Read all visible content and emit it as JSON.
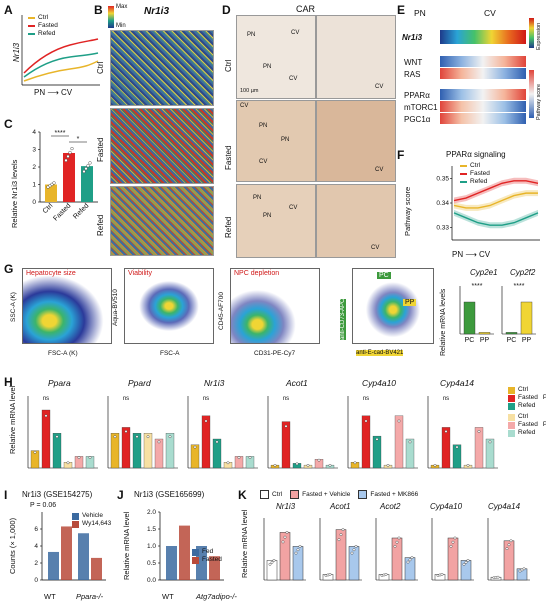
{
  "panels": {
    "A": {
      "letter": "A",
      "ylabel": "Nr1i3",
      "xlabel": "PN ⟶ CV",
      "legend": [
        "Ctrl",
        "Fasted",
        "Refed"
      ]
    },
    "B": {
      "letter": "B",
      "title": "Nr1i3",
      "scale_max": "Max",
      "scale_min": "Min",
      "rows": [
        "Ctrl",
        "Fasted",
        "Refed"
      ]
    },
    "C": {
      "letter": "C",
      "ylabel": "Relative Nr1i3 levels",
      "categories": [
        "Ctrl",
        "Fasted",
        "Refed"
      ],
      "sig": [
        "****",
        "*"
      ],
      "yticks": [
        "0",
        "1",
        "2",
        "3",
        "4"
      ]
    },
    "D": {
      "letter": "D",
      "title": "CAR",
      "rows": [
        "Ctrl",
        "Fasted",
        "Refed"
      ],
      "scalebar": "100 µm",
      "tissue_labels": {
        "pn": "PN",
        "cv": "CV"
      }
    },
    "E": {
      "letter": "E",
      "pn": "PN",
      "cv": "CV",
      "rows": [
        "Nr1i3",
        "WNT",
        "RAS",
        "PPARα",
        "mTORC1",
        "PGC1α"
      ],
      "expr_label": "Expression",
      "path_label": "Pathway score",
      "max": "Max",
      "min": "Min"
    },
    "F": {
      "letter": "F",
      "title": "PPARα signaling",
      "ylabel": "Pathway score",
      "xlabel": "PN ⟶ CV",
      "yticks": [
        "0.33",
        "0.34",
        "0.35"
      ],
      "legend": [
        "Ctrl",
        "Fasted",
        "Refed"
      ]
    },
    "G": {
      "letter": "G",
      "gates": [
        "Hepatocyte size",
        "Viability",
        "NPC depletion"
      ],
      "axes": [
        [
          "SSC-A (K)",
          "FSC-A (K)"
        ],
        [
          "Aqua-BV510",
          "FSC-A"
        ],
        [
          "CD45-AF700",
          "CD31-PE-Cy7"
        ],
        [
          "anti-CD73-APC",
          "anti-E-cad-BV421"
        ]
      ],
      "pc": "PC",
      "pp": "PP",
      "bar_ylabel": "Relative mRNA levels",
      "genes": [
        "Cyp2e1",
        "Cyp2f2"
      ],
      "sig": "****"
    },
    "H": {
      "letter": "H",
      "ylabel": "Relative mRNA level",
      "genes": [
        "Ppara",
        "Ppard",
        "Nr1i3",
        "Acot1",
        "Cyp4a10",
        "Cyp4a14"
      ],
      "legend_pc": [
        "Ctrl",
        "Fasted",
        "Refed"
      ],
      "legend_pp": [
        "Ctrl",
        "Fasted",
        "Refed"
      ],
      "pc": "PC",
      "pp": "PP",
      "ns": "ns"
    },
    "I": {
      "letter": "I",
      "title": "Nr1i3 (GSE154275)",
      "ylabel": "Counts (× 1,000)",
      "pval": "P = 0.06",
      "groups": [
        "WT",
        "Ppara-/-"
      ],
      "legend": [
        "Vehicle",
        "Wy14,643"
      ],
      "yticks": [
        "0",
        "2",
        "4",
        "6"
      ]
    },
    "J": {
      "letter": "J",
      "title": "Nr1i3 (GSE165699)",
      "ylabel": "Relative mRNA level",
      "groups": [
        "WT",
        "Atg7adipo-/-"
      ],
      "legend": [
        "Fed",
        "Fasted"
      ],
      "yticks": [
        "0.0",
        "0.5",
        "1.0",
        "1.5",
        "2.0"
      ]
    },
    "K": {
      "letter": "K",
      "legend": [
        "Ctrl",
        "Fasted + Vehicle",
        "Fasted + MK866"
      ],
      "ylabel": "Relative mRNA level",
      "genes": [
        "Nr1i3",
        "Acot1",
        "Acot2",
        "Cyp4a10",
        "Cyp4a14"
      ]
    }
  },
  "chart_data": [
    {
      "type": "bar",
      "title": "",
      "ylabel": "Relative Nr1i3 levels",
      "categories": [
        "Ctrl",
        "Fasted",
        "Refed"
      ],
      "values": [
        1.0,
        2.8,
        2.05
      ],
      "ylim": [
        0,
        4
      ]
    },
    {
      "type": "line",
      "title": "PPARα signaling",
      "xlabel": "PN ⟶ CV",
      "ylabel": "Pathway score",
      "ylim": [
        0.325,
        0.355
      ],
      "series": [
        {
          "name": "Ctrl",
          "values": [
            0.339,
            0.338,
            0.338,
            0.339,
            0.341,
            0.343,
            0.344,
            0.344
          ]
        },
        {
          "name": "Fasted",
          "values": [
            0.341,
            0.342,
            0.344,
            0.346,
            0.348,
            0.349,
            0.349,
            0.348
          ]
        },
        {
          "name": "Refed",
          "values": [
            0.336,
            0.334,
            0.332,
            0.331,
            0.331,
            0.332,
            0.334,
            0.336
          ]
        }
      ]
    },
    {
      "type": "bar",
      "title": "",
      "ylabel": "Relative mRNA levels",
      "categories": [
        "PC",
        "PP"
      ],
      "series": [
        {
          "name": "Cyp2e1",
          "values": [
            1.0,
            0.05
          ]
        },
        {
          "name": "Cyp2f2",
          "values": [
            0.05,
            1.0
          ]
        }
      ],
      "ylim": [
        0,
        1.5
      ]
    },
    {
      "type": "bar",
      "title": "Nr1i3 (GSE154275)",
      "ylabel": "Counts (× 1,000)",
      "categories": [
        "WT",
        "Ppara-/-"
      ],
      "series": [
        {
          "name": "Vehicle",
          "values": [
            3.3,
            5.5
          ]
        },
        {
          "name": "Wy14,643",
          "values": [
            6.3,
            2.6
          ]
        }
      ],
      "ylim": [
        0,
        8
      ]
    },
    {
      "type": "bar",
      "title": "Nr1i3 (GSE165699)",
      "ylabel": "Relative mRNA level",
      "categories": [
        "WT",
        "Atg7adipo-/-"
      ],
      "series": [
        {
          "name": "Fed",
          "values": [
            1.0,
            1.0
          ]
        },
        {
          "name": "Fasted",
          "values": [
            1.6,
            0.7
          ]
        }
      ],
      "ylim": [
        0,
        2
      ]
    }
  ],
  "colors": {
    "ctrl": "#e8b52a",
    "fasted": "#e02424",
    "refed": "#1f9f87",
    "pc": "#3d9a3d",
    "pp": "#f0d534",
    "veh": "#f2a3a3",
    "mk": "#a8c8ec",
    "ctrl_light": "#f7e0a3",
    "fasted_light": "#f4a9a9",
    "refed_light": "#a9dccf"
  }
}
